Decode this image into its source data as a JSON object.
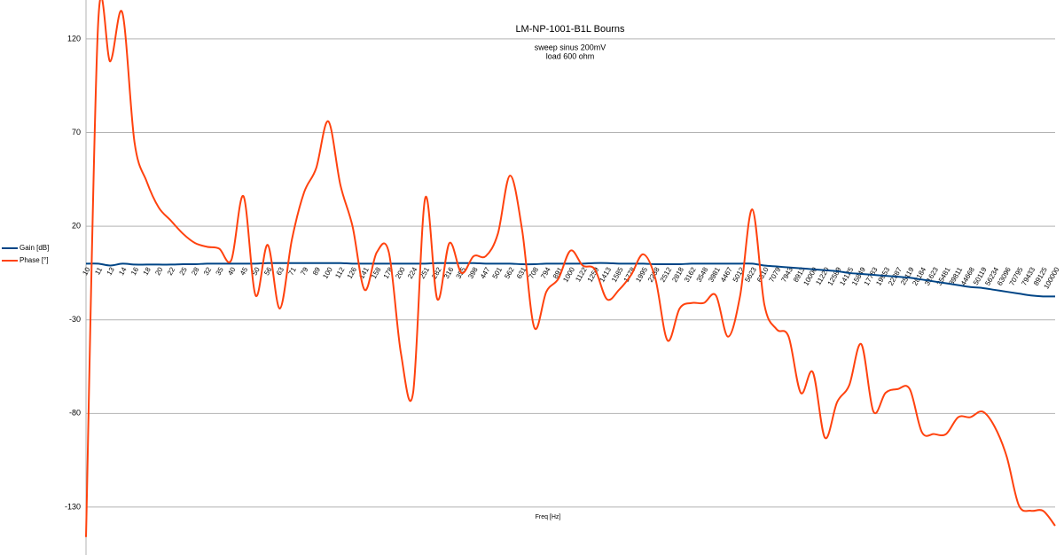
{
  "chart_data": {
    "type": "line",
    "title": "LM-NP-1001-B1L Bourns",
    "subtitle": [
      "sweep sinus 200mV",
      "load 600 ohm"
    ],
    "x_label": "Freq [Hz]",
    "categories": [
      "10",
      "11",
      "13",
      "14",
      "16",
      "18",
      "20",
      "22",
      "25",
      "28",
      "32",
      "35",
      "40",
      "45",
      "50",
      "56",
      "63",
      "71",
      "79",
      "89",
      "100",
      "112",
      "126",
      "141",
      "158",
      "178",
      "200",
      "224",
      "251",
      "282",
      "316",
      "355",
      "398",
      "447",
      "501",
      "562",
      "631",
      "708",
      "794",
      "891",
      "1000",
      "1122",
      "1259",
      "1413",
      "1585",
      "1778",
      "1995",
      "2238",
      "2512",
      "2818",
      "3162",
      "3548",
      "3981",
      "4467",
      "5012",
      "5623",
      "6310",
      "7079",
      "7943",
      "8913",
      "10000",
      "11220",
      "12589",
      "14125",
      "15849",
      "17783",
      "19953",
      "22387",
      "25119",
      "28184",
      "31623",
      "35481",
      "39811",
      "44668",
      "50119",
      "56234",
      "63096",
      "70795",
      "79433",
      "89125",
      "100000"
    ],
    "series": [
      {
        "name": "Gain [dB]",
        "color": "#004586",
        "values": [
          0,
          0,
          -1,
          0,
          -0.5,
          -0.5,
          -0.5,
          -0.5,
          -0.3,
          -0.3,
          0,
          0,
          0,
          0,
          0,
          0.3,
          0.3,
          0.3,
          0.3,
          0.3,
          0.3,
          0.3,
          0,
          0,
          0,
          0,
          0,
          0,
          0,
          0.3,
          0.3,
          0.3,
          0.3,
          0,
          0,
          0,
          -0.3,
          -0.3,
          0,
          0,
          0,
          0,
          0.3,
          0.3,
          0,
          0,
          0,
          -0.3,
          -0.3,
          -0.3,
          0,
          0,
          0,
          0,
          0,
          0,
          -1,
          -1.5,
          -2,
          -2.5,
          -3,
          -3.5,
          -4,
          -5,
          -5.5,
          -6,
          -6.5,
          -7,
          -7.5,
          -8.5,
          -9.5,
          -10.5,
          -11.5,
          -12.5,
          -13,
          -14,
          -15,
          -16,
          -17,
          -17.5,
          -17.5
        ]
      },
      {
        "name": "Phase [°]",
        "color": "#ff420e",
        "values": [
          -146,
          128,
          108,
          134,
          65,
          44,
          30,
          23,
          16,
          11,
          9,
          8,
          2,
          36,
          -17,
          10,
          -24,
          13,
          38,
          51,
          76,
          42,
          20,
          -14,
          6,
          6,
          -48,
          -69,
          35,
          -19,
          11,
          -5,
          4,
          4,
          16,
          47,
          18,
          -34,
          -15,
          -8,
          7,
          -1,
          -3,
          -19,
          -14,
          -6,
          5,
          -8,
          -41,
          -24,
          -21,
          -21,
          -17,
          -39,
          -17,
          29,
          -22,
          -35,
          -39,
          -69,
          -58,
          -93,
          -74,
          -65,
          -43,
          -79,
          -69,
          -67,
          -67,
          -90,
          -91,
          -91,
          -82,
          -82,
          -79,
          -87,
          -103,
          -129,
          -132,
          -132,
          -140
        ]
      }
    ],
    "ylim": [
      -155.6,
      140.8
    ],
    "yticks": [
      120,
      70,
      20,
      -30,
      -80,
      -130
    ],
    "grid": true,
    "legend": "left"
  }
}
